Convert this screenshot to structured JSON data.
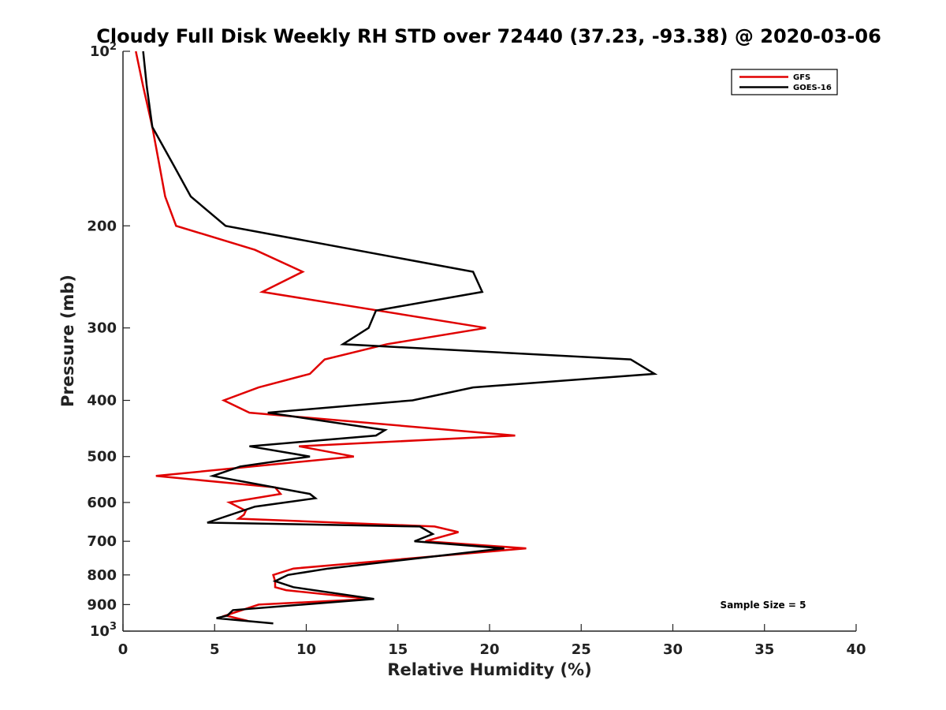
{
  "chart_data": {
    "type": "line",
    "title": "Cloudy Full Disk Weekly RH STD over 72440 (37.23, -93.38) @ 2020-03-06",
    "xlabel": "Relative Humidity (%)",
    "ylabel": "Pressure (mb)",
    "xlim": [
      0,
      40
    ],
    "ylim": [
      100,
      1000
    ],
    "yscale": "log",
    "y_reversed": true,
    "x_ticks": [
      0,
      5,
      10,
      15,
      20,
      25,
      30,
      35,
      40
    ],
    "x_tick_labels": [
      "0",
      "5",
      "10",
      "15",
      "20",
      "25",
      "30",
      "35",
      "40"
    ],
    "y_ticks": [
      100,
      200,
      300,
      400,
      500,
      600,
      700,
      800,
      900,
      1000
    ],
    "y_tick_labels": [
      {
        "base": "10",
        "exp": "2"
      },
      {
        "base": "200",
        "exp": ""
      },
      {
        "base": "300",
        "exp": ""
      },
      {
        "base": "400",
        "exp": ""
      },
      {
        "base": "500",
        "exp": ""
      },
      {
        "base": "600",
        "exp": ""
      },
      {
        "base": "700",
        "exp": ""
      },
      {
        "base": "800",
        "exp": ""
      },
      {
        "base": "900",
        "exp": ""
      },
      {
        "base": "10",
        "exp": "3"
      }
    ],
    "grid": false,
    "legend_position": "top-right",
    "series": [
      {
        "name": "GFS",
        "color": "#e00000",
        "points": [
          [
            0.7,
            100
          ],
          [
            1.1,
            115
          ],
          [
            1.6,
            135
          ],
          [
            2.0,
            158
          ],
          [
            2.3,
            178
          ],
          [
            2.9,
            200
          ],
          [
            7.2,
            220
          ],
          [
            9.8,
            240
          ],
          [
            7.6,
            260
          ],
          [
            19.8,
            300
          ],
          [
            14.4,
            320
          ],
          [
            11.0,
            340
          ],
          [
            10.2,
            360
          ],
          [
            7.4,
            380
          ],
          [
            5.5,
            400
          ],
          [
            6.9,
            420
          ],
          [
            21.4,
            460
          ],
          [
            9.6,
            480
          ],
          [
            12.6,
            500
          ],
          [
            1.8,
            540
          ],
          [
            8.3,
            565
          ],
          [
            8.6,
            580
          ],
          [
            5.8,
            600
          ],
          [
            6.7,
            620
          ],
          [
            6.6,
            630
          ],
          [
            6.3,
            640
          ],
          [
            17.0,
            660
          ],
          [
            18.3,
            675
          ],
          [
            16.5,
            700
          ],
          [
            22.0,
            720
          ],
          [
            9.3,
            780
          ],
          [
            8.2,
            800
          ],
          [
            8.3,
            820
          ],
          [
            8.3,
            840
          ],
          [
            8.9,
            850
          ],
          [
            13.5,
            880
          ],
          [
            7.4,
            900
          ],
          [
            5.6,
            940
          ],
          [
            6.8,
            960
          ]
        ]
      },
      {
        "name": "GOES-16",
        "color": "#000000",
        "points": [
          [
            1.1,
            100
          ],
          [
            1.3,
            115
          ],
          [
            1.6,
            135
          ],
          [
            2.8,
            158
          ],
          [
            3.7,
            178
          ],
          [
            5.6,
            200
          ],
          [
            19.1,
            240
          ],
          [
            19.6,
            260
          ],
          [
            13.8,
            280
          ],
          [
            13.4,
            300
          ],
          [
            12.0,
            320
          ],
          [
            27.7,
            340
          ],
          [
            29.0,
            360
          ],
          [
            19.1,
            380
          ],
          [
            15.8,
            400
          ],
          [
            7.9,
            420
          ],
          [
            14.3,
            450
          ],
          [
            13.8,
            460
          ],
          [
            6.9,
            480
          ],
          [
            10.2,
            500
          ],
          [
            6.4,
            520
          ],
          [
            4.9,
            540
          ],
          [
            10.2,
            580
          ],
          [
            10.5,
            590
          ],
          [
            7.2,
            610
          ],
          [
            4.6,
            650
          ],
          [
            16.2,
            660
          ],
          [
            16.9,
            680
          ],
          [
            15.9,
            700
          ],
          [
            20.8,
            720
          ],
          [
            11.2,
            780
          ],
          [
            9.0,
            800
          ],
          [
            8.3,
            820
          ],
          [
            9.3,
            840
          ],
          [
            13.7,
            880
          ],
          [
            6.0,
            920
          ],
          [
            5.7,
            940
          ],
          [
            5.1,
            950
          ],
          [
            8.2,
            970
          ]
        ]
      }
    ],
    "annotation": "Sample Size = 5"
  }
}
